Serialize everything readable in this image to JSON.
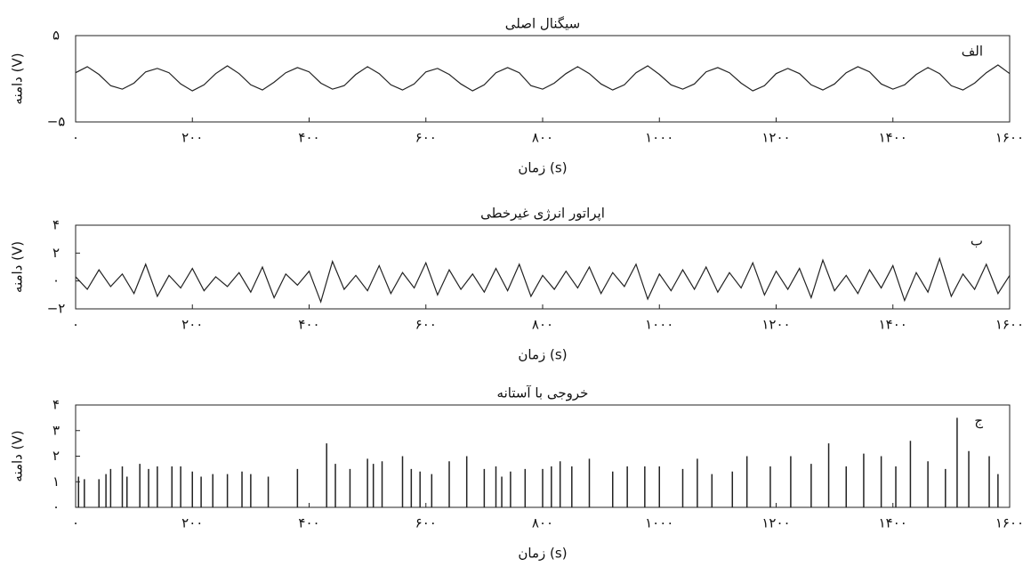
{
  "chart_data": [
    {
      "type": "line",
      "title": "سیگنال اصلی",
      "xlabel": "زمان (s)",
      "ylabel": "دامنه (V)",
      "annotation": "الف",
      "x": [
        0,
        20,
        40,
        60,
        80,
        100,
        120,
        140,
        160,
        180,
        200,
        220,
        240,
        260,
        280,
        300,
        320,
        340,
        360,
        380,
        400,
        420,
        440,
        460,
        480,
        500,
        520,
        540,
        560,
        580,
        600,
        620,
        640,
        660,
        680,
        700,
        720,
        740,
        760,
        780,
        800,
        820,
        840,
        860,
        880,
        900,
        920,
        940,
        960,
        980,
        1000,
        1020,
        1040,
        1060,
        1080,
        1100,
        1120,
        1140,
        1160,
        1180,
        1200,
        1220,
        1240,
        1260,
        1280,
        1300,
        1320,
        1340,
        1360,
        1380,
        1400,
        1420,
        1440,
        1460,
        1480,
        1500,
        1520,
        1540,
        1560,
        1580,
        1600
      ],
      "series": [
        {
          "color": "#222222",
          "values": [
            0.7,
            1.4,
            0.5,
            -0.8,
            -1.2,
            -0.5,
            0.8,
            1.2,
            0.7,
            -0.6,
            -1.4,
            -0.7,
            0.6,
            1.5,
            0.6,
            -0.7,
            -1.3,
            -0.4,
            0.7,
            1.3,
            0.8,
            -0.5,
            -1.2,
            -0.8,
            0.5,
            1.4,
            0.6,
            -0.7,
            -1.3,
            -0.6,
            0.8,
            1.2,
            0.5,
            -0.6,
            -1.4,
            -0.7,
            0.7,
            1.3,
            0.7,
            -0.8,
            -1.2,
            -0.5,
            0.6,
            1.4,
            0.6,
            -0.6,
            -1.3,
            -0.7,
            0.7,
            1.5,
            0.5,
            -0.7,
            -1.2,
            -0.6,
            0.8,
            1.3,
            0.7,
            -0.5,
            -1.4,
            -0.8,
            0.6,
            1.2,
            0.6,
            -0.7,
            -1.3,
            -0.6,
            0.7,
            1.4,
            0.8,
            -0.6,
            -1.2,
            -0.7,
            0.5,
            1.3,
            0.6,
            -0.8,
            -1.3,
            -0.5,
            0.7,
            1.6,
            0.6
          ]
        }
      ],
      "xlim": [
        0,
        1600
      ],
      "ylim": [
        -5,
        5
      ],
      "xticks": [
        {
          "value": 0,
          "label": "۰"
        },
        {
          "value": 200,
          "label": "۲۰۰"
        },
        {
          "value": 400,
          "label": "۴۰۰"
        },
        {
          "value": 600,
          "label": "۶۰۰"
        },
        {
          "value": 800,
          "label": "۸۰۰"
        },
        {
          "value": 1000,
          "label": "۱۰۰۰"
        },
        {
          "value": 1200,
          "label": "۱۲۰۰"
        },
        {
          "value": 1400,
          "label": "۱۴۰۰"
        },
        {
          "value": 1600,
          "label": "۱۶۰۰"
        }
      ],
      "yticks": [
        {
          "value": -5,
          "label": "−۵"
        },
        {
          "value": 5,
          "label": "۵"
        }
      ]
    },
    {
      "type": "line",
      "title": "اپراتور انرژی غیرخطی",
      "xlabel": "زمان (s)",
      "ylabel": "دامنه (V)",
      "annotation": "ب",
      "x": [
        0,
        20,
        40,
        60,
        80,
        100,
        120,
        140,
        160,
        180,
        200,
        220,
        240,
        260,
        280,
        300,
        320,
        340,
        360,
        380,
        400,
        420,
        440,
        460,
        480,
        500,
        520,
        540,
        560,
        580,
        600,
        620,
        640,
        660,
        680,
        700,
        720,
        740,
        760,
        780,
        800,
        820,
        840,
        860,
        880,
        900,
        920,
        940,
        960,
        980,
        1000,
        1020,
        1040,
        1060,
        1080,
        1100,
        1120,
        1140,
        1160,
        1180,
        1200,
        1220,
        1240,
        1260,
        1280,
        1300,
        1320,
        1340,
        1360,
        1380,
        1400,
        1420,
        1440,
        1460,
        1480,
        1500,
        1520,
        1540,
        1560,
        1580,
        1600
      ],
      "series": [
        {
          "color": "#222222",
          "values": [
            0.3,
            -0.6,
            0.8,
            -0.4,
            0.5,
            -0.9,
            1.2,
            -1.1,
            0.4,
            -0.5,
            0.9,
            -0.7,
            0.3,
            -0.4,
            0.6,
            -0.8,
            1.0,
            -1.2,
            0.5,
            -0.3,
            0.7,
            -1.5,
            1.4,
            -0.6,
            0.4,
            -0.7,
            1.1,
            -0.9,
            0.6,
            -0.5,
            1.3,
            -1.0,
            0.8,
            -0.6,
            0.5,
            -0.8,
            0.9,
            -0.7,
            1.2,
            -1.1,
            0.4,
            -0.6,
            0.7,
            -0.5,
            1.0,
            -0.9,
            0.6,
            -0.4,
            1.2,
            -1.3,
            0.5,
            -0.7,
            0.8,
            -0.6,
            1.0,
            -0.8,
            0.6,
            -0.5,
            1.3,
            -1.0,
            0.7,
            -0.6,
            0.9,
            -1.2,
            1.5,
            -0.7,
            0.4,
            -0.9,
            0.8,
            -0.5,
            1.1,
            -1.4,
            0.6,
            -0.8,
            1.6,
            -1.1,
            0.5,
            -0.6,
            1.2,
            -0.9,
            0.4
          ]
        }
      ],
      "xlim": [
        0,
        1600
      ],
      "ylim": [
        -2,
        4
      ],
      "xticks": [
        {
          "value": 0,
          "label": "۰"
        },
        {
          "value": 200,
          "label": "۲۰۰"
        },
        {
          "value": 400,
          "label": "۴۰۰"
        },
        {
          "value": 600,
          "label": "۶۰۰"
        },
        {
          "value": 800,
          "label": "۸۰۰"
        },
        {
          "value": 1000,
          "label": "۱۰۰۰"
        },
        {
          "value": 1200,
          "label": "۱۲۰۰"
        },
        {
          "value": 1400,
          "label": "۱۴۰۰"
        },
        {
          "value": 1600,
          "label": "۱۶۰۰"
        }
      ],
      "yticks": [
        {
          "value": -2,
          "label": "−۲"
        },
        {
          "value": 0,
          "label": "۰"
        },
        {
          "value": 2,
          "label": "۲"
        },
        {
          "value": 4,
          "label": "۴"
        }
      ]
    },
    {
      "type": "stem",
      "title": "خروجی با آستانه",
      "xlabel": "زمان (s)",
      "ylabel": "دامنه (V)",
      "annotation": "ج",
      "x": [
        5,
        15,
        40,
        52,
        60,
        80,
        88,
        110,
        125,
        140,
        165,
        180,
        200,
        215,
        235,
        260,
        285,
        300,
        330,
        380,
        430,
        445,
        470,
        500,
        510,
        525,
        560,
        575,
        590,
        610,
        640,
        670,
        700,
        720,
        730,
        745,
        770,
        800,
        815,
        830,
        850,
        880,
        920,
        945,
        975,
        1000,
        1040,
        1065,
        1090,
        1125,
        1150,
        1190,
        1225,
        1260,
        1290,
        1320,
        1350,
        1380,
        1405,
        1430,
        1460,
        1490,
        1510,
        1530,
        1565,
        1580
      ],
      "series": [
        {
          "color": "#222222",
          "values": [
            1.2,
            1.1,
            1.1,
            1.3,
            1.5,
            1.6,
            1.2,
            1.7,
            1.5,
            1.6,
            1.6,
            1.6,
            1.4,
            1.2,
            1.3,
            1.3,
            1.4,
            1.3,
            1.2,
            1.5,
            2.5,
            1.7,
            1.5,
            1.9,
            1.7,
            1.8,
            2.0,
            1.5,
            1.4,
            1.3,
            1.8,
            2.0,
            1.5,
            1.6,
            1.2,
            1.4,
            1.5,
            1.5,
            1.6,
            1.8,
            1.6,
            1.9,
            1.4,
            1.6,
            1.6,
            1.6,
            1.5,
            1.9,
            1.3,
            1.4,
            2.0,
            1.6,
            2.0,
            1.7,
            2.5,
            1.6,
            2.1,
            2.0,
            1.6,
            2.6,
            1.8,
            1.5,
            3.5,
            2.2,
            2.0,
            1.3
          ]
        }
      ],
      "xlim": [
        0,
        1600
      ],
      "ylim": [
        0,
        4
      ],
      "xticks": [
        {
          "value": 0,
          "label": "۰"
        },
        {
          "value": 200,
          "label": "۲۰۰"
        },
        {
          "value": 400,
          "label": "۴۰۰"
        },
        {
          "value": 600,
          "label": "۶۰۰"
        },
        {
          "value": 800,
          "label": "۸۰۰"
        },
        {
          "value": 1000,
          "label": "۱۰۰۰"
        },
        {
          "value": 1200,
          "label": "۱۲۰۰"
        },
        {
          "value": 1400,
          "label": "۱۴۰۰"
        },
        {
          "value": 1600,
          "label": "۱۶۰۰"
        }
      ],
      "yticks": [
        {
          "value": 0,
          "label": "۰"
        },
        {
          "value": 1,
          "label": "۱"
        },
        {
          "value": 2,
          "label": "۲"
        },
        {
          "value": 3,
          "label": "۳"
        },
        {
          "value": 4,
          "label": "۴"
        }
      ]
    }
  ]
}
